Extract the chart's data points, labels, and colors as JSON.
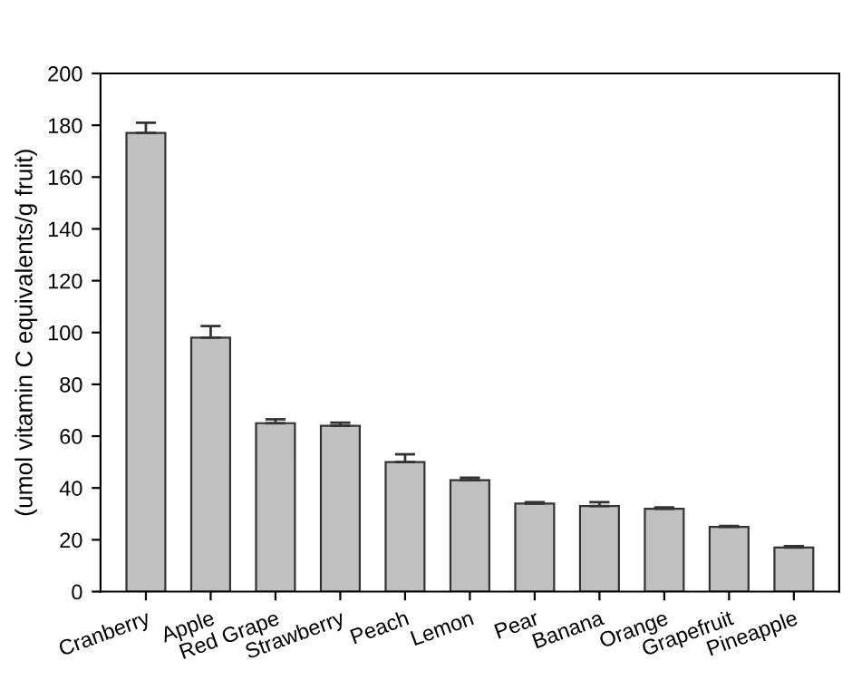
{
  "chart_data": {
    "type": "bar",
    "ylabel": "(umol vitamin C equivalents/g fruit)",
    "categories": [
      "Cranberry",
      "Apple",
      "Red Grape",
      "Strawberry",
      "Peach",
      "Lemon",
      "Pear",
      "Banana",
      "Orange",
      "Grapefruit",
      "Pineapple"
    ],
    "values": [
      177,
      98,
      65,
      64,
      50,
      43,
      34,
      33,
      32,
      25,
      17
    ],
    "errors": [
      [
        177,
        181
      ],
      [
        98,
        102.5
      ],
      [
        65,
        66.5
      ],
      [
        64,
        65.2
      ],
      [
        50,
        53
      ],
      [
        43,
        44
      ],
      [
        34,
        34.5
      ],
      [
        33,
        34.5
      ],
      [
        32,
        32.5
      ],
      [
        25,
        25.3
      ],
      [
        17,
        17.5
      ]
    ],
    "color": "#c0c0c0",
    "ylim": [
      0,
      200
    ],
    "yticks": [
      0,
      20,
      40,
      60,
      80,
      100,
      120,
      140,
      160,
      180,
      200
    ],
    "grid": false
  }
}
